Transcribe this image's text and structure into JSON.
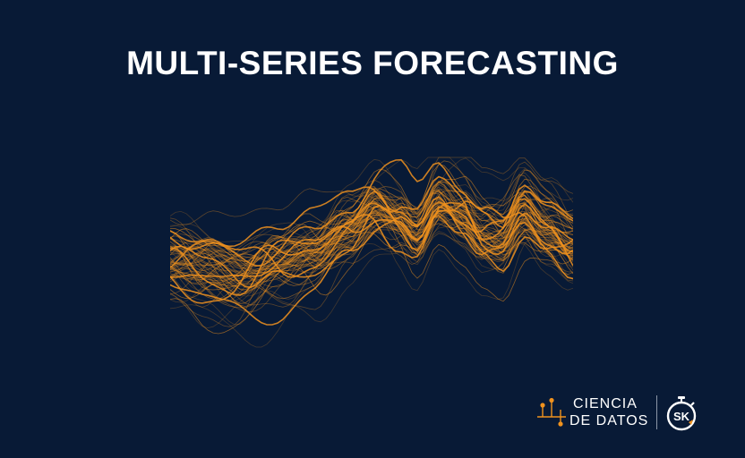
{
  "header": {
    "title": "MULTI-SERIES FORECASTING"
  },
  "illustration": {
    "wave_color": "#f0921e",
    "background_color": "#081a36"
  },
  "brand": {
    "line1": "CIENCIA",
    "line2": "DE DATOS",
    "logo_text": "SK",
    "icon": "scatter-chart-icon",
    "logo_icon": "stopwatch-icon",
    "accent_color": "#f0921e"
  }
}
